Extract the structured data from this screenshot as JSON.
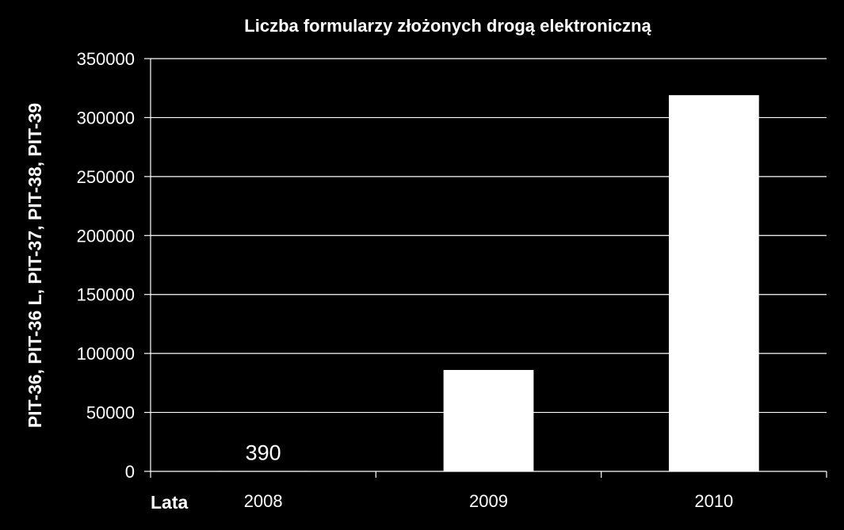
{
  "chart_data": {
    "type": "bar",
    "title": "Liczba formularzy złożonych drogą elektroniczną",
    "xlabel": "Lata",
    "ylabel": "PIT-36, PIT-36 L, PIT-37, PIT-38, PIT-39",
    "categories": [
      "2008",
      "2009",
      "2010"
    ],
    "values": [
      390,
      86000,
      319000
    ],
    "data_labels": [
      "390",
      "",
      ""
    ],
    "ylim": [
      0,
      350000
    ],
    "yticks": [
      0,
      50000,
      100000,
      150000,
      200000,
      250000,
      300000,
      350000
    ],
    "ytick_labels": [
      "0",
      "50000",
      "100000",
      "150000",
      "200000",
      "250000",
      "300000",
      "350000"
    ],
    "grid": true,
    "legend": "none",
    "colors": {
      "background": "#000000",
      "bar": "#ffffff",
      "grid": "#ffffff",
      "text": "#ffffff"
    }
  }
}
